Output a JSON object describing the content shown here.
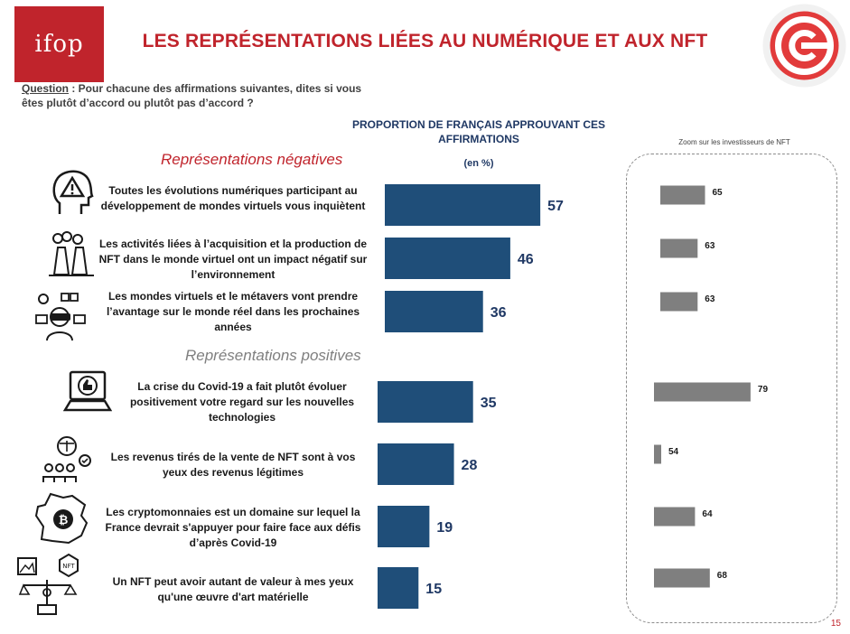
{
  "brand": {
    "logo_text": "ifop",
    "accent_color": "#c0242c"
  },
  "title": "LES REPRÉSENTATIONS LIÉES AU NUMÉRIQUE ET AUX NFT",
  "question": {
    "label": "Question",
    "text": " : Pour chacune des affirmations suivantes, dites si vous êtes plutôt d’accord ou plutôt pas d’accord ?"
  },
  "main_header": "PROPORTION DE FRANÇAIS APPROUVANT CES AFFIRMATIONS",
  "unit_label": "(en %)",
  "zoom_title": "Zoom sur les investisseurs de NFT",
  "sections": {
    "negative": "Représentations négatives",
    "positive": "Représentations positives"
  },
  "icons": [
    "head-warning-icon",
    "factory-pollution-icon",
    "virtual-reality-icon",
    "laptop-thumbs-up-icon",
    "scale-people-icon",
    "france-bitcoin-icon",
    "art-nft-balance-icon"
  ],
  "page_number": "15",
  "chart_data": {
    "type": "bar",
    "orientation": "horizontal",
    "categories": [
      "Toutes les évolutions numériques participant au développement de mondes virtuels vous inquiètent",
      "Les activités liées à l’acquisition et la production de NFT dans le monde virtuel ont un impact négatif sur l’environnement",
      "Les mondes virtuels et le métavers vont prendre l’avantage sur le monde réel dans les prochaines années",
      "La crise du Covid-19 a fait plutôt évoluer positivement votre regard sur les nouvelles technologies",
      "Les revenus tirés de la vente de NFT sont à vos yeux des revenus légitimes",
      "Les cryptomonnaies est un domaine sur lequel la France devrait s'appuyer pour faire face aux défis d’après Covid-19",
      "Un NFT peut avoir autant de valeur à mes yeux qu'une œuvre d'art matérielle"
    ],
    "groups": [
      "negative",
      "negative",
      "negative",
      "positive",
      "positive",
      "positive",
      "positive"
    ],
    "series": [
      {
        "values": [
          57,
          46,
          36,
          35,
          28,
          19,
          15
        ],
        "color": "#1f4e79"
      },
      {
        "values": [
          65,
          63,
          63,
          79,
          54,
          64,
          68
        ],
        "color": "#7f7f7f"
      }
    ]
  }
}
